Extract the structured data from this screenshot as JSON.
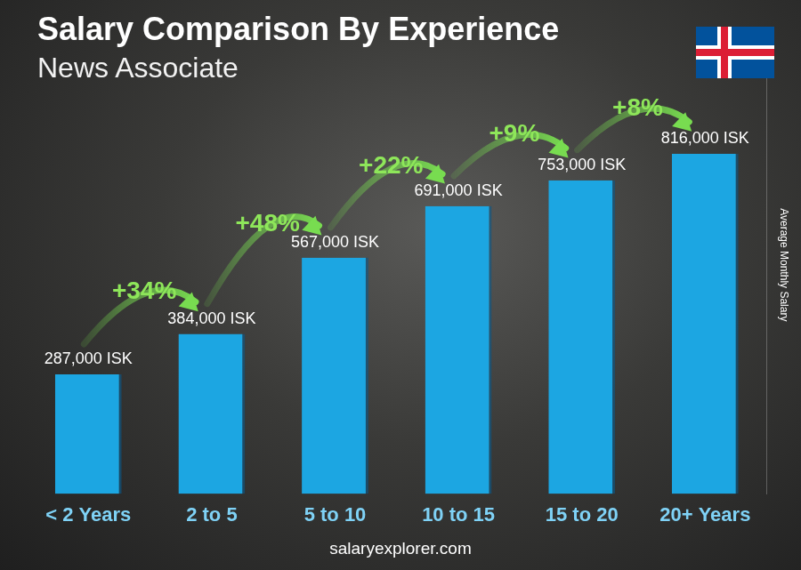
{
  "chart_data": {
    "type": "bar",
    "title": "Salary Comparison By Experience",
    "subtitle": "News Associate",
    "categories": [
      "< 2 Years",
      "2 to 5",
      "5 to 10",
      "10 to 15",
      "15 to 20",
      "20+ Years"
    ],
    "values": [
      287000,
      384000,
      567000,
      691000,
      753000,
      816000
    ],
    "value_labels": [
      "287,000 ISK",
      "384,000 ISK",
      "567,000 ISK",
      "691,000 ISK",
      "753,000 ISK",
      "816,000 ISK"
    ],
    "data_labels": true,
    "annotations": [
      "+34%",
      "+48%",
      "+22%",
      "+9%",
      "+8%"
    ],
    "ylabel": "Average Monthly Salary",
    "footer": "salaryexplorer.com",
    "color": "#1ca6e2",
    "ylim": [
      0,
      1100000
    ],
    "grid": false,
    "tick_labels": "x"
  }
}
